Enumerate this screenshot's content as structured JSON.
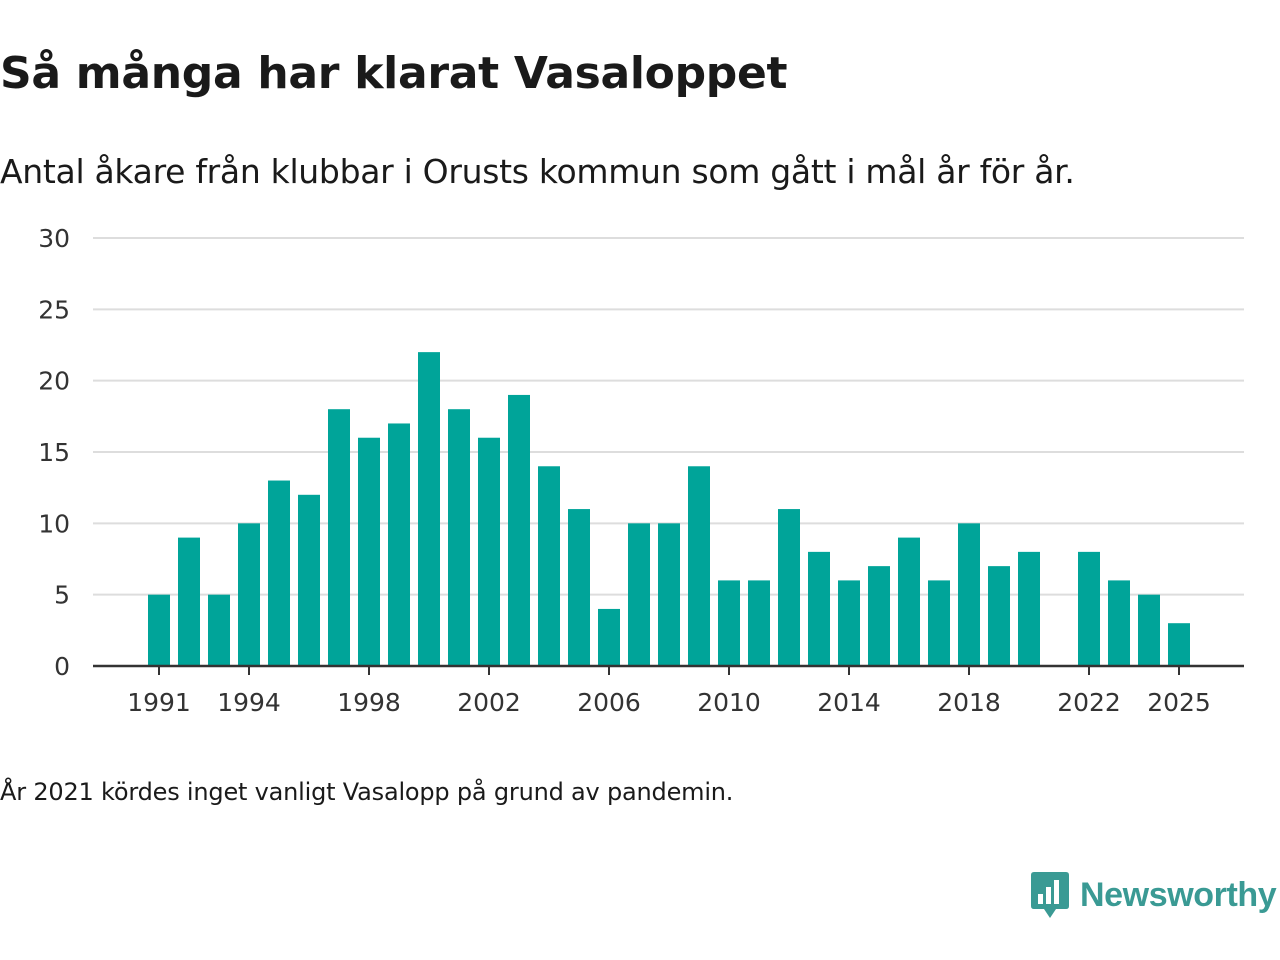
{
  "header": {
    "title": "Så många har klarat Vasaloppet",
    "subtitle": "Antal åkare från klubbar i Orusts kommun som gått i mål år för år."
  },
  "footnote": "År 2021 kördes inget vanligt Vasalopp på grund av pandemin.",
  "brand": {
    "name": "Newsworthy",
    "icon": "newsworthy-logo-icon",
    "color": "#3a9a94"
  },
  "colors": {
    "bar": "#00a499",
    "grid": "#dddddd",
    "axis": "#333333"
  },
  "chart_data": {
    "type": "bar",
    "title": "Så många har klarat Vasaloppet",
    "xlabel": "",
    "ylabel": "",
    "ylim": [
      0,
      30
    ],
    "yticks": [
      0,
      5,
      10,
      15,
      20,
      25,
      30
    ],
    "x": [
      1991,
      1992,
      1993,
      1994,
      1995,
      1996,
      1997,
      1998,
      1999,
      2000,
      2001,
      2002,
      2003,
      2004,
      2005,
      2006,
      2007,
      2008,
      2009,
      2010,
      2011,
      2012,
      2013,
      2014,
      2015,
      2016,
      2017,
      2018,
      2019,
      2020,
      2021,
      2022,
      2023,
      2024,
      2025
    ],
    "values": [
      5,
      9,
      5,
      10,
      13,
      12,
      18,
      16,
      17,
      22,
      18,
      16,
      19,
      14,
      11,
      4,
      10,
      10,
      14,
      6,
      6,
      11,
      8,
      6,
      7,
      9,
      6,
      10,
      7,
      8,
      null,
      8,
      6,
      5,
      3
    ],
    "xticks": [
      1991,
      1994,
      1998,
      2002,
      2006,
      2010,
      2014,
      2018,
      2022,
      2025
    ],
    "grid": true,
    "legend": "none"
  }
}
